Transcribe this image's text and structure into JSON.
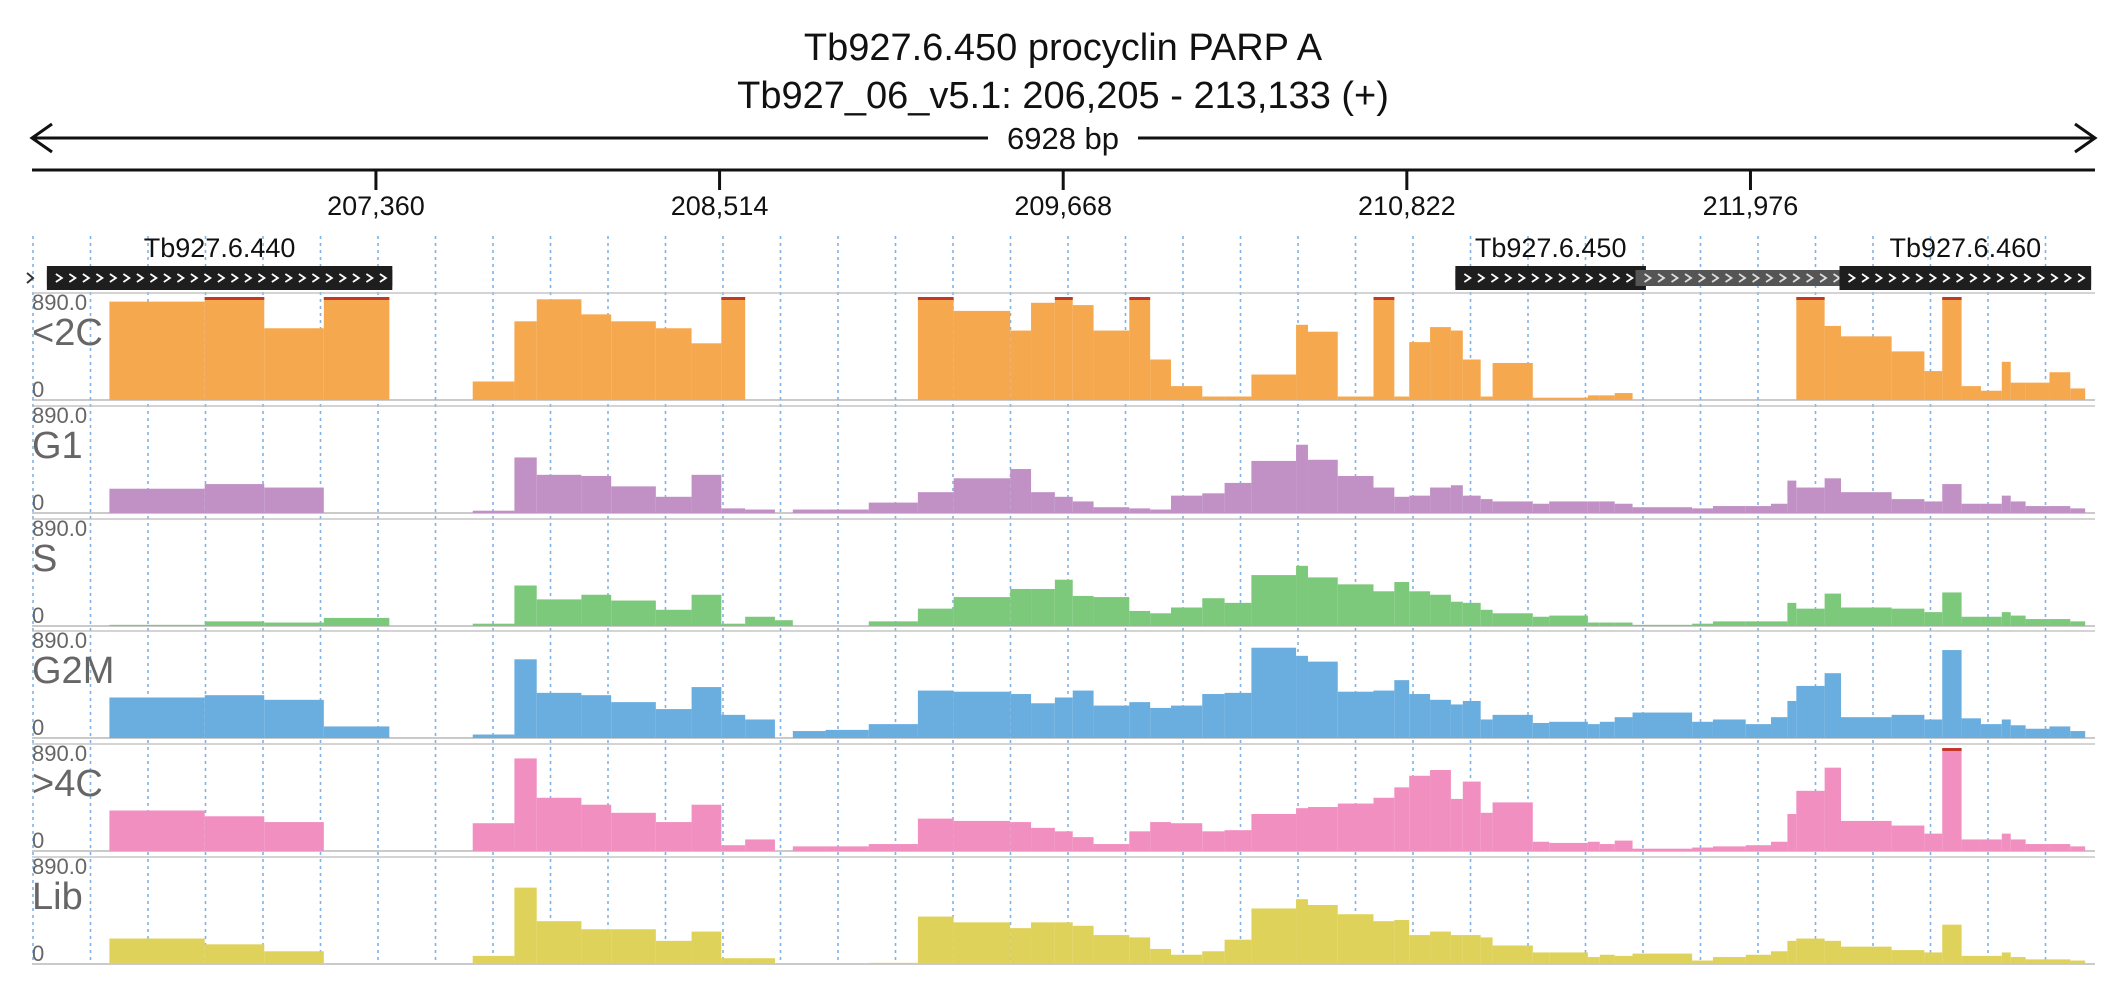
{
  "chart_data": {
    "type": "bar",
    "title": "Tb927.6.450  procyclin PARP A",
    "subtitle": "Tb927_06_v5.1: 206,205 - 213,133 (+)",
    "span_label": "6928 bp",
    "xlim": [
      206205,
      213133
    ],
    "x_ticks": [
      207360,
      208514,
      209668,
      210822,
      211976
    ],
    "x_tick_labels": [
      "207,360",
      "208,514",
      "209,668",
      "210,822",
      "211,976"
    ],
    "grid": true,
    "genes": [
      {
        "name": "Tb927.6.440",
        "start": 206255,
        "end": 207415,
        "cds_start": 206255,
        "cds_end": 207415,
        "strand": "+"
      },
      {
        "name": "Tb927.6.450",
        "start": 210985,
        "end": 211920,
        "cds_start": 210985,
        "cds_end": 211625,
        "strand": "+"
      },
      {
        "name": "Tb927.6.460",
        "start": 211590,
        "end": 213120,
        "cds_start": 212275,
        "cds_end": 213120,
        "strand": "+"
      }
    ],
    "bin_starts": [
      206205,
      206465,
      206785,
      206985,
      207185,
      207405,
      207685,
      207825,
      207900,
      208050,
      208150,
      208300,
      208420,
      208520,
      208600,
      208700,
      208760,
      208870,
      209015,
      209180,
      209300,
      209490,
      209560,
      209640,
      209700,
      209770,
      209890,
      209960,
      210030,
      210135,
      210210,
      210300,
      210450,
      210490,
      210590,
      210710,
      210780,
      210830,
      210900,
      210970,
      211010,
      211070,
      211110,
      211245,
      211300,
      211430,
      211470,
      211520,
      211580,
      211780,
      211850,
      211960,
      212045,
      212100,
      212130,
      212225,
      212280,
      212450,
      212560,
      212620,
      212685,
      212750,
      212820,
      212850,
      212900,
      212980,
      213050,
      213100,
      213133
    ],
    "series": [
      {
        "name": "<2C",
        "color": "#f5a84e",
        "values": [
          0,
          850,
          890,
          620,
          890,
          0,
          160,
          680,
          870,
          740,
          680,
          620,
          490,
          890,
          0,
          0,
          0,
          0,
          0,
          890,
          770,
          600,
          840,
          890,
          820,
          600,
          890,
          350,
          120,
          30,
          30,
          220,
          650,
          590,
          30,
          890,
          30,
          500,
          630,
          600,
          350,
          30,
          320,
          20,
          20,
          40,
          40,
          60,
          0,
          0,
          0,
          0,
          0,
          0,
          890,
          640,
          550,
          420,
          250,
          890,
          120,
          80,
          330,
          150,
          150,
          240,
          100,
          0
        ]
      },
      {
        "name": "G1",
        "color": "#c191c6",
        "values": [
          0,
          210,
          250,
          220,
          0,
          0,
          20,
          480,
          330,
          320,
          230,
          140,
          330,
          40,
          30,
          0,
          30,
          30,
          90,
          180,
          300,
          380,
          180,
          140,
          100,
          50,
          40,
          30,
          150,
          170,
          260,
          450,
          590,
          460,
          320,
          220,
          140,
          150,
          220,
          240,
          150,
          120,
          100,
          80,
          100,
          100,
          100,
          80,
          50,
          40,
          60,
          60,
          80,
          280,
          220,
          300,
          180,
          120,
          100,
          250,
          80,
          80,
          150,
          100,
          60,
          60,
          40,
          0
        ]
      },
      {
        "name": "S",
        "color": "#7dc97b",
        "values": [
          0,
          10,
          40,
          30,
          70,
          0,
          20,
          350,
          230,
          270,
          220,
          140,
          270,
          20,
          80,
          50,
          0,
          0,
          40,
          150,
          250,
          320,
          320,
          400,
          260,
          250,
          130,
          110,
          160,
          240,
          200,
          440,
          520,
          420,
          360,
          300,
          380,
          300,
          270,
          210,
          200,
          140,
          110,
          80,
          90,
          30,
          30,
          30,
          10,
          20,
          40,
          40,
          40,
          200,
          150,
          280,
          160,
          150,
          120,
          290,
          80,
          80,
          120,
          90,
          60,
          60,
          40,
          0
        ]
      },
      {
        "name": "G2M",
        "color": "#6aaee0",
        "values": [
          0,
          350,
          370,
          330,
          100,
          0,
          30,
          680,
          390,
          370,
          310,
          250,
          440,
          200,
          160,
          0,
          60,
          70,
          120,
          410,
          400,
          380,
          300,
          350,
          410,
          280,
          310,
          260,
          280,
          380,
          390,
          780,
          710,
          660,
          400,
          410,
          500,
          380,
          330,
          290,
          320,
          160,
          200,
          130,
          140,
          120,
          140,
          180,
          220,
          140,
          160,
          120,
          180,
          320,
          450,
          560,
          180,
          200,
          160,
          760,
          170,
          120,
          160,
          110,
          80,
          100,
          60,
          0
        ]
      },
      {
        "name": ">4C",
        "color": "#f18fc1",
        "values": [
          0,
          350,
          300,
          250,
          0,
          0,
          240,
          800,
          460,
          400,
          330,
          250,
          400,
          50,
          100,
          0,
          40,
          40,
          60,
          280,
          260,
          250,
          200,
          170,
          120,
          60,
          170,
          250,
          240,
          170,
          180,
          320,
          370,
          380,
          410,
          460,
          550,
          650,
          700,
          450,
          600,
          330,
          420,
          80,
          70,
          80,
          60,
          90,
          20,
          30,
          40,
          50,
          80,
          320,
          520,
          720,
          260,
          220,
          150,
          890,
          100,
          100,
          150,
          100,
          60,
          60,
          40,
          0
        ]
      },
      {
        "name": "Lib",
        "color": "#dfd25a",
        "values": [
          0,
          220,
          170,
          110,
          0,
          0,
          70,
          660,
          370,
          300,
          300,
          200,
          280,
          50,
          50,
          0,
          0,
          0,
          10,
          410,
          360,
          310,
          360,
          360,
          330,
          250,
          230,
          130,
          80,
          110,
          210,
          480,
          560,
          510,
          430,
          370,
          380,
          250,
          280,
          250,
          250,
          230,
          160,
          100,
          100,
          60,
          80,
          70,
          90,
          30,
          60,
          80,
          110,
          200,
          220,
          200,
          150,
          120,
          100,
          340,
          70,
          70,
          100,
          60,
          40,
          40,
          30,
          0
        ]
      }
    ],
    "y_max_label": "890.0",
    "y_min_label": "0",
    "ylim": [
      0,
      890
    ]
  }
}
